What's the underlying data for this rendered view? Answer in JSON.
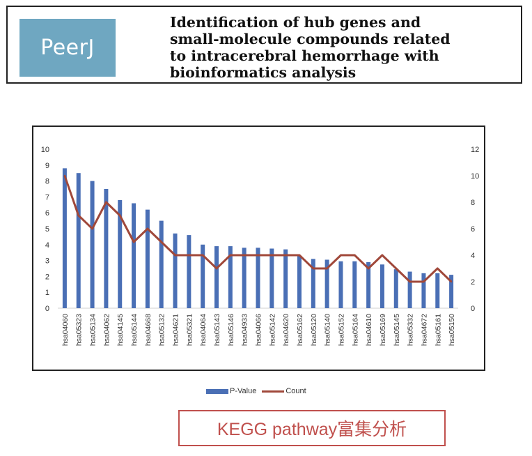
{
  "header": {
    "logo_text": "PeerJ",
    "title_lines": [
      "Identification of hub genes and",
      "small-molecule compounds related",
      "to intracerebral hemorrhage with",
      "bioinformatics analysis"
    ]
  },
  "legend": {
    "bar_label": "P-Value",
    "line_label": "Count"
  },
  "caption": "KEGG pathway富集分析",
  "colors": {
    "bar": "#4a6fb5",
    "line": "#a0483a",
    "caption": "#c0504d"
  },
  "chart_data": {
    "type": "bar",
    "title": "",
    "xlabel": "",
    "ylabel": "",
    "categories": [
      "hsa04060",
      "hsa05323",
      "hsa05134",
      "hsa04062",
      "hsa04145",
      "hsa05144",
      "hsa04668",
      "hsa05132",
      "hsa04621",
      "hsa05321",
      "hsa04064",
      "hsa05143",
      "hsa05146",
      "hsa04933",
      "hsa04066",
      "hsa05142",
      "hsa04620",
      "hsa05162",
      "hsa05120",
      "hsa05140",
      "hsa05152",
      "hsa05164",
      "hsa04610",
      "hsa05169",
      "hsa05145",
      "hsa05332",
      "hsa04672",
      "hsa05161",
      "hsa05150"
    ],
    "series": [
      {
        "name": "P-Value",
        "type": "bar",
        "axis": "left",
        "values": [
          8.8,
          8.5,
          8.0,
          7.5,
          6.8,
          6.6,
          6.2,
          5.5,
          4.7,
          4.6,
          4.0,
          3.9,
          3.9,
          3.8,
          3.8,
          3.75,
          3.7,
          3.3,
          3.1,
          3.05,
          2.95,
          2.95,
          2.9,
          2.75,
          2.45,
          2.3,
          2.2,
          2.2,
          2.1
        ]
      },
      {
        "name": "Count",
        "type": "line",
        "axis": "right",
        "values": [
          10,
          7,
          6,
          8,
          7,
          5,
          6,
          5,
          4,
          4,
          4,
          3,
          4,
          4,
          4,
          4,
          4,
          4,
          3,
          3,
          4,
          4,
          3,
          4,
          3,
          2,
          2,
          3,
          2
        ]
      }
    ],
    "ylim": [
      0,
      10
    ],
    "y_ticks": [
      0,
      1,
      2,
      3,
      4,
      5,
      6,
      7,
      8,
      9,
      10
    ],
    "y2lim": [
      0,
      12
    ],
    "y2_ticks": [
      0,
      2,
      4,
      6,
      8,
      10,
      12
    ],
    "legend_position": "bottom",
    "grid": false
  }
}
